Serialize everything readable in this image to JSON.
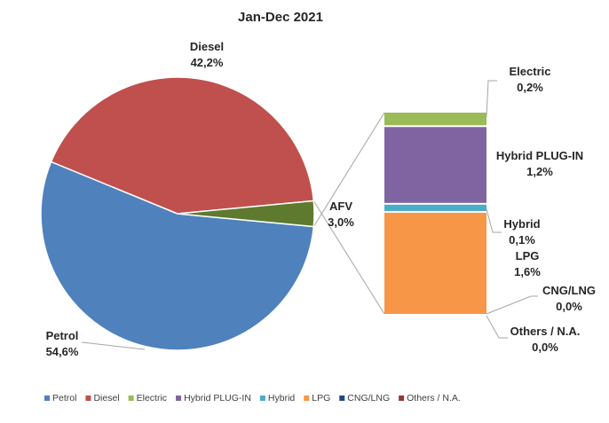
{
  "chart_data": {
    "type": "pie",
    "title": "Jan-Dec 2021",
    "colors": {
      "Petrol": "#4f81bd",
      "Diesel": "#c0504d",
      "Electric": "#9bbb59",
      "Hybrid PLUG-IN": "#8064a2",
      "Hybrid": "#4bacc6",
      "LPG": "#f79646",
      "CNG/LNG": "#1f497d",
      "Others / N.A.": "#953735",
      "AFV": "#5e7a2e"
    },
    "pie": {
      "slices": [
        {
          "name": "Petrol",
          "value": 54.6,
          "label": "54,6%"
        },
        {
          "name": "Diesel",
          "value": 42.2,
          "label": "42,2%"
        },
        {
          "name": "AFV",
          "value": 3.0,
          "label": "3,0%"
        }
      ]
    },
    "breakdown": {
      "group": "AFV",
      "segments": [
        {
          "name": "Electric",
          "value": 0.2,
          "label": "0,2%"
        },
        {
          "name": "Hybrid PLUG-IN",
          "value": 1.2,
          "label": "1,2%"
        },
        {
          "name": "Hybrid",
          "value": 0.1,
          "label": "0,1%"
        },
        {
          "name": "LPG",
          "value": 1.6,
          "label": "1,6%"
        },
        {
          "name": "CNG/LNG",
          "value": 0.0,
          "label": "0,0%"
        },
        {
          "name": "Others / N.A.",
          "value": 0.0,
          "label": "0,0%"
        }
      ]
    },
    "legend": {
      "position": "bottom",
      "entries": [
        "Petrol",
        "Diesel",
        "Electric",
        "Hybrid PLUG-IN",
        "Hybrid",
        "LPG",
        "CNG/LNG",
        "Others / N.A."
      ]
    }
  }
}
